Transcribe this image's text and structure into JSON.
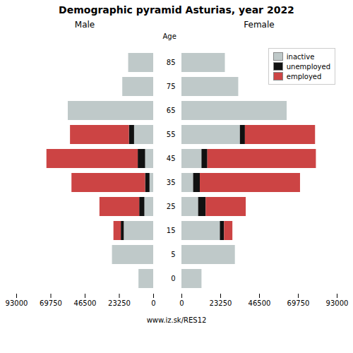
{
  "title": "Demographic pyramid Asturias, year 2022",
  "annotations": [
    "www.iz.sk/RES12"
  ],
  "chart_data": [
    {
      "type": "bar",
      "orientation": "horizontal",
      "stacked": true,
      "title": "Male",
      "categories": [
        "0",
        "5",
        "15",
        "25",
        "35",
        "45",
        "55",
        "65",
        "75",
        "85"
      ],
      "series": [
        {
          "name": "inactive",
          "color": "#bfc9c9",
          "values": [
            10000,
            28000,
            20000,
            6000,
            2500,
            5500,
            13000,
            58000,
            21000,
            17000
          ]
        },
        {
          "name": "unemployed",
          "color": "#111111",
          "values": [
            0,
            0,
            2000,
            3500,
            3000,
            5000,
            3500,
            0,
            0,
            0
          ]
        },
        {
          "name": "employed",
          "color": "#cc4444",
          "values": [
            0,
            0,
            5000,
            27000,
            50000,
            62000,
            40000,
            0,
            0,
            0
          ]
        }
      ],
      "xlim": [
        93000,
        0
      ],
      "xticks": [
        93000,
        69750,
        46500,
        23250,
        0
      ],
      "grid": false,
      "tick_labels": "x"
    },
    {
      "type": "bar",
      "orientation": "horizontal",
      "stacked": true,
      "title": "Female",
      "ylabel": "Age",
      "categories": [
        "0",
        "5",
        "15",
        "25",
        "35",
        "45",
        "55",
        "65",
        "75",
        "85"
      ],
      "series": [
        {
          "name": "inactive",
          "color": "#bfc9c9",
          "values": [
            12000,
            32000,
            23000,
            10000,
            7000,
            12000,
            35000,
            63000,
            34000,
            26000
          ]
        },
        {
          "name": "unemployed",
          "color": "#111111",
          "values": [
            0,
            0,
            2500,
            4500,
            4000,
            3500,
            3000,
            0,
            0,
            0
          ]
        },
        {
          "name": "employed",
          "color": "#cc4444",
          "values": [
            0,
            0,
            5000,
            24000,
            60000,
            65000,
            42000,
            0,
            0,
            0
          ]
        }
      ],
      "xlim": [
        0,
        93000
      ],
      "xticks": [
        0,
        23250,
        46500,
        69750,
        93000
      ],
      "grid": false,
      "legend": "upper right"
    }
  ]
}
